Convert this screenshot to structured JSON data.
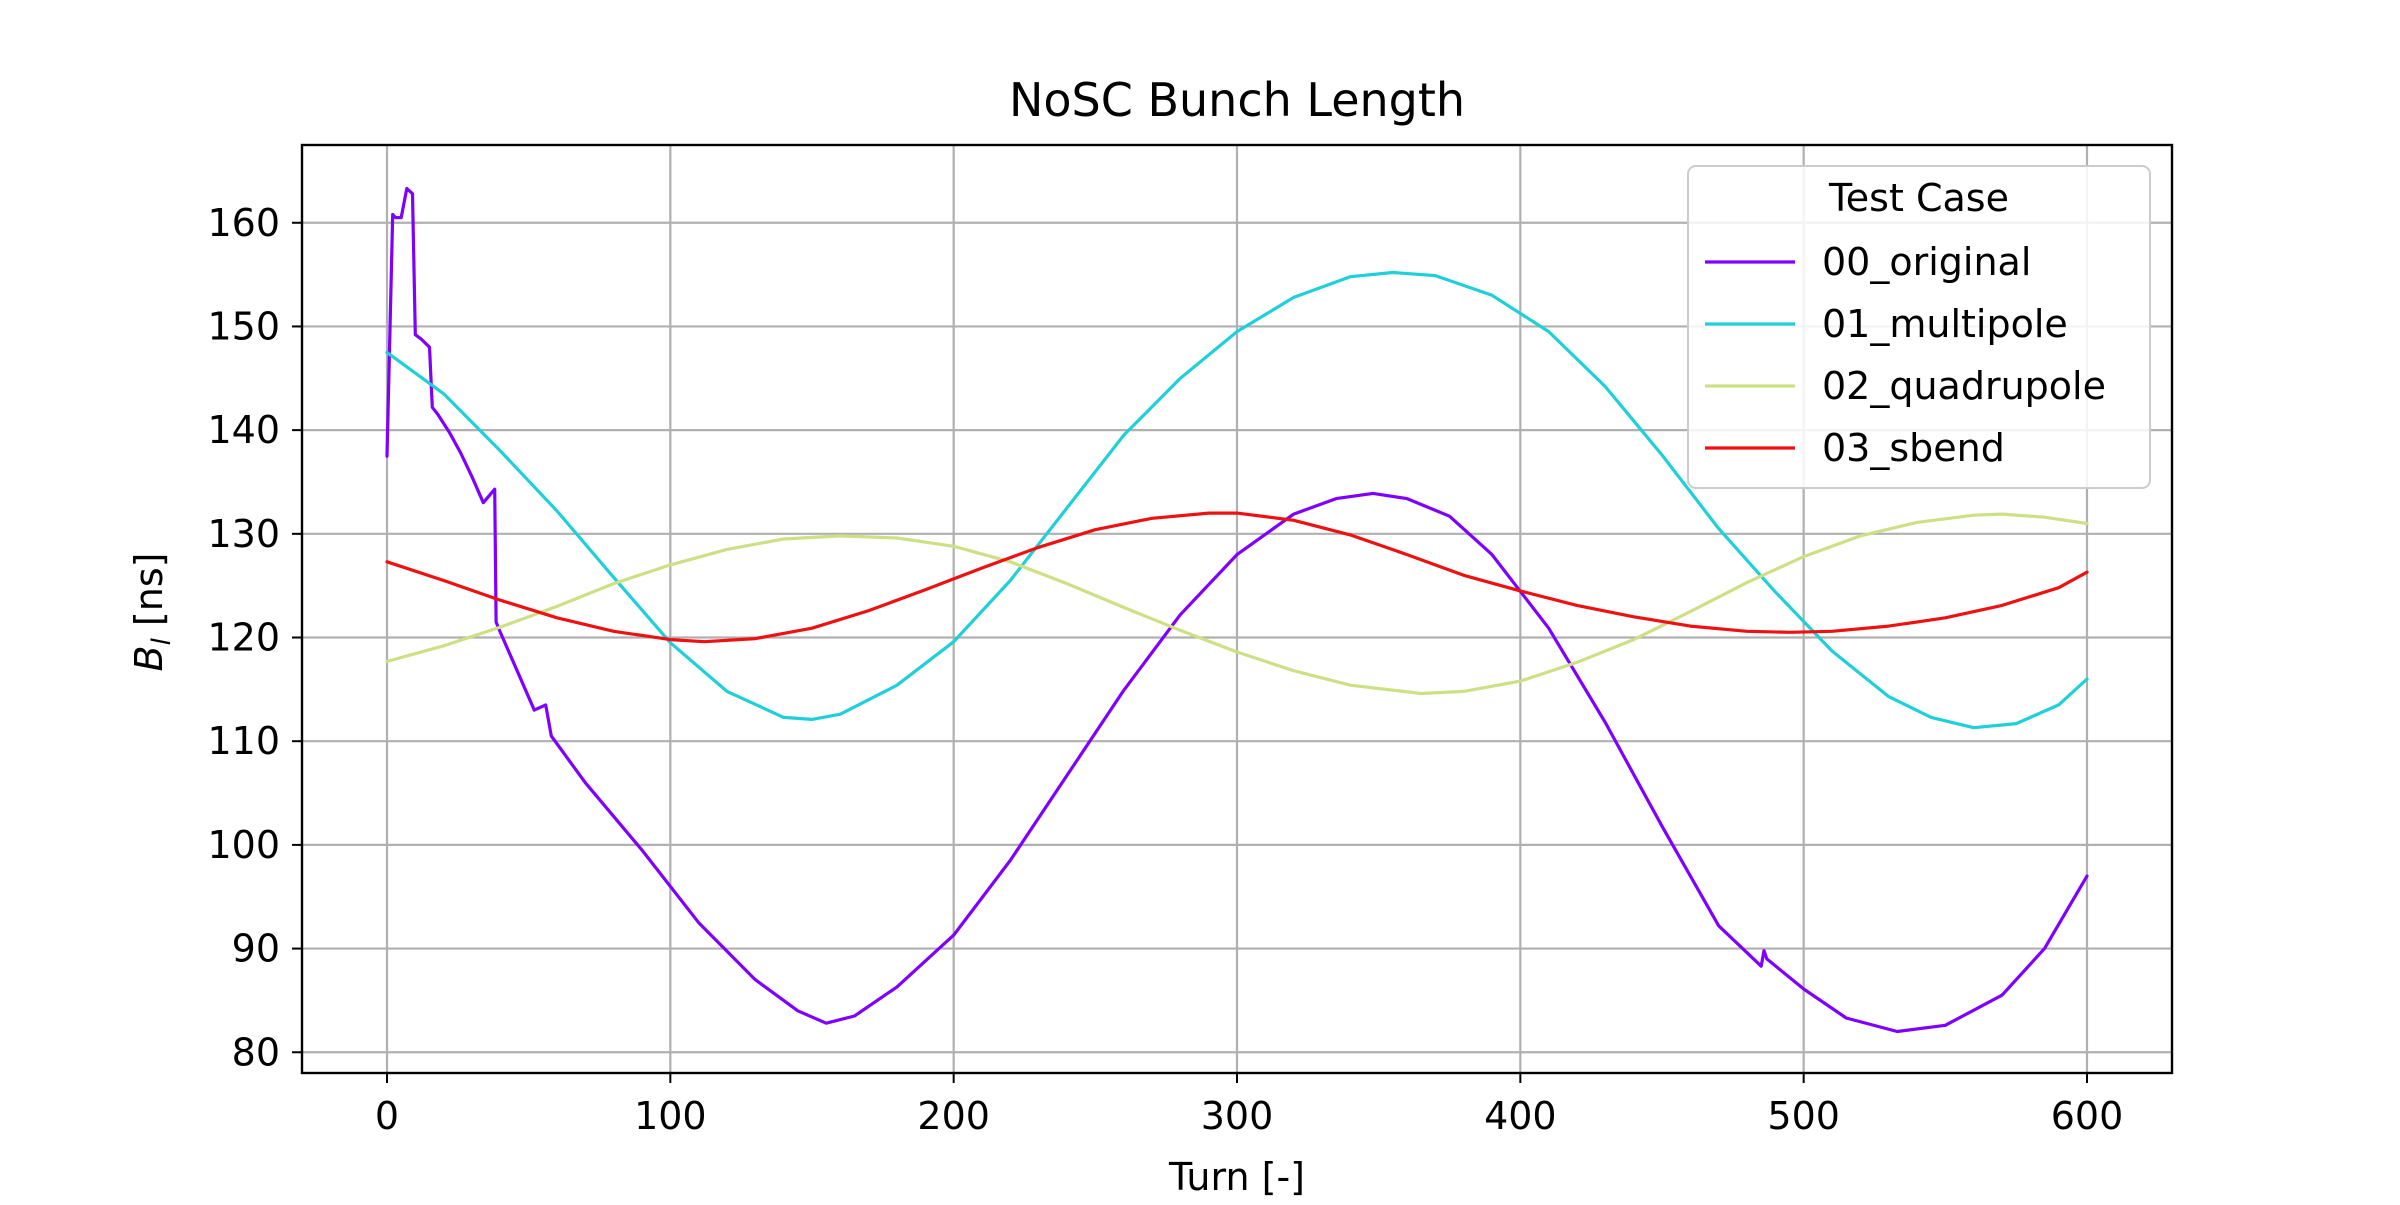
{
  "chart_data": {
    "type": "line",
    "title": "NoSC Bunch Length",
    "xlabel": "Turn [-]",
    "ylabel": "B_l [ns]",
    "ylabel_main": "B",
    "ylabel_sub": "l",
    "ylabel_unit": " [ns]",
    "xlim": [
      -30,
      630
    ],
    "ylim": [
      78,
      167.5
    ],
    "xticks": [
      0,
      100,
      200,
      300,
      400,
      500,
      600
    ],
    "yticks": [
      80,
      90,
      100,
      110,
      120,
      130,
      140,
      150,
      160
    ],
    "grid": true,
    "legend": {
      "title": "Test Case",
      "placement": "top-right"
    },
    "series": [
      {
        "name": "00_original",
        "color": "#7f00ff",
        "x": [
          0,
          2,
          3,
          5,
          7,
          9,
          10,
          12,
          15,
          16,
          18,
          22,
          26,
          30,
          34,
          38,
          38.5,
          40,
          44,
          48,
          52,
          56,
          58,
          70,
          90,
          110,
          130,
          145,
          155,
          165,
          180,
          200,
          220,
          240,
          260,
          280,
          300,
          320,
          335,
          348,
          360,
          375,
          390,
          410,
          430,
          450,
          470,
          485,
          486,
          487,
          500,
          515,
          533,
          550,
          570,
          585,
          600
        ],
        "values": [
          137.5,
          160.8,
          160.5,
          160.5,
          163.3,
          162.8,
          149.2,
          148.8,
          148.0,
          142.2,
          141.5,
          139.8,
          137.8,
          135.5,
          133.0,
          134.3,
          121.5,
          120.5,
          118.0,
          115.5,
          113.0,
          113.5,
          110.5,
          106.0,
          99.5,
          92.5,
          87.0,
          84.0,
          82.8,
          83.5,
          86.3,
          91.3,
          98.5,
          106.7,
          114.9,
          122.2,
          128.0,
          131.9,
          133.4,
          133.9,
          133.4,
          131.7,
          128.0,
          120.9,
          111.8,
          101.8,
          92.2,
          88.3,
          89.8,
          89.0,
          86.1,
          83.3,
          82.0,
          82.6,
          85.5,
          90.0,
          97.0
        ]
      },
      {
        "name": "01_multipole",
        "color": "#1fcfd9",
        "x": [
          0,
          20,
          40,
          60,
          80,
          100,
          120,
          140,
          150,
          160,
          180,
          200,
          220,
          240,
          260,
          280,
          300,
          320,
          340,
          355,
          370,
          390,
          410,
          430,
          450,
          470,
          490,
          510,
          530,
          545,
          560,
          575,
          590,
          600
        ],
        "values": [
          147.5,
          143.5,
          138.0,
          132.2,
          125.8,
          119.5,
          114.8,
          112.3,
          112.1,
          112.6,
          115.4,
          119.6,
          125.5,
          132.5,
          139.5,
          145.0,
          149.5,
          152.8,
          154.8,
          155.2,
          154.9,
          153.0,
          149.5,
          144.2,
          137.6,
          130.5,
          124.4,
          118.7,
          114.3,
          112.3,
          111.3,
          111.7,
          113.5,
          116.0
        ]
      },
      {
        "name": "02_quadrupole",
        "color": "#cde086",
        "x": [
          0,
          20,
          40,
          60,
          80,
          100,
          120,
          140,
          160,
          180,
          200,
          220,
          240,
          260,
          280,
          300,
          320,
          340,
          365,
          380,
          400,
          420,
          440,
          460,
          480,
          500,
          520,
          540,
          560,
          570,
          585,
          600
        ],
        "values": [
          117.7,
          119.2,
          121.0,
          123.0,
          125.2,
          127.0,
          128.5,
          129.5,
          129.8,
          129.6,
          128.8,
          127.3,
          125.2,
          122.9,
          120.7,
          118.6,
          116.8,
          115.4,
          114.6,
          114.8,
          115.8,
          117.6,
          119.8,
          122.5,
          125.3,
          127.8,
          129.8,
          131.1,
          131.8,
          131.9,
          131.6,
          131.0
        ]
      },
      {
        "name": "03_sbend",
        "color": "#ee1111",
        "x": [
          0,
          20,
          40,
          60,
          80,
          100,
          112,
          130,
          150,
          170,
          190,
          210,
          230,
          250,
          270,
          290,
          300,
          320,
          340,
          360,
          380,
          400,
          420,
          440,
          460,
          480,
          495,
          510,
          530,
          550,
          570,
          590,
          600
        ],
        "values": [
          127.3,
          125.5,
          123.6,
          121.9,
          120.6,
          119.8,
          119.6,
          119.9,
          120.9,
          122.6,
          124.6,
          126.7,
          128.7,
          130.4,
          131.5,
          132.0,
          132.0,
          131.3,
          129.9,
          128.0,
          126.0,
          124.5,
          123.1,
          122.0,
          121.1,
          120.6,
          120.5,
          120.6,
          121.1,
          121.9,
          123.1,
          124.8,
          126.3
        ]
      }
    ]
  }
}
